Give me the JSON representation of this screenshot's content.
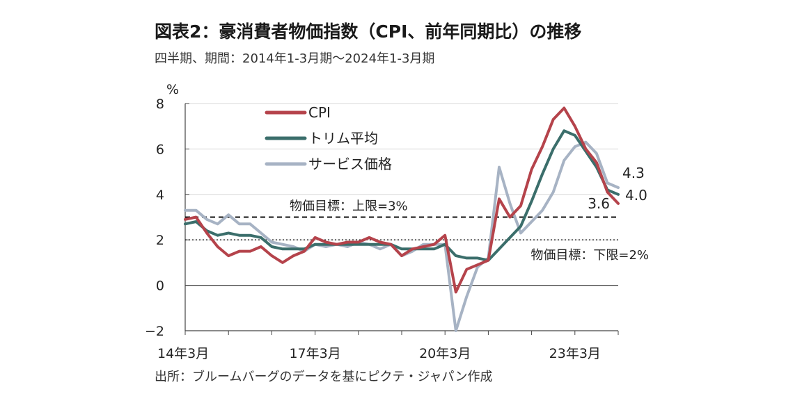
{
  "title": "図表2：豪消費者物価指数（CPI、前年同期比）の推移",
  "subtitle": "四半期、期間：2014年1-3月期～2024年1-3月期",
  "source": "出所：ブルームバーグのデータを基にピクテ・ジャパン作成",
  "chart_data": {
    "type": "line",
    "ylabel": "%",
    "ylim": [
      -2,
      8
    ],
    "yticks": [
      -2,
      0,
      2,
      4,
      6,
      8
    ],
    "x": [
      "14Q1",
      "14Q2",
      "14Q3",
      "14Q4",
      "15Q1",
      "15Q2",
      "15Q3",
      "15Q4",
      "16Q1",
      "16Q2",
      "16Q3",
      "16Q4",
      "17Q1",
      "17Q2",
      "17Q3",
      "17Q4",
      "18Q1",
      "18Q2",
      "18Q3",
      "18Q4",
      "19Q1",
      "19Q2",
      "19Q3",
      "19Q4",
      "20Q1",
      "20Q2",
      "20Q3",
      "20Q4",
      "21Q1",
      "21Q2",
      "21Q3",
      "21Q4",
      "22Q1",
      "22Q2",
      "22Q3",
      "22Q4",
      "23Q1",
      "23Q2",
      "23Q3",
      "23Q4",
      "24Q1"
    ],
    "xtick_labels": [
      {
        "index": 0,
        "label": "14年3月"
      },
      {
        "index": 12,
        "label": "17年3月"
      },
      {
        "index": 24,
        "label": "20年3月"
      },
      {
        "index": 36,
        "label": "23年3月"
      }
    ],
    "series": [
      {
        "name": "CPI",
        "color": "#b5434b",
        "values": [
          2.9,
          3.0,
          2.3,
          1.7,
          1.3,
          1.5,
          1.5,
          1.7,
          1.3,
          1.0,
          1.3,
          1.5,
          2.1,
          1.9,
          1.8,
          1.9,
          1.9,
          2.1,
          1.9,
          1.8,
          1.3,
          1.6,
          1.7,
          1.8,
          2.2,
          -0.3,
          0.7,
          0.9,
          1.1,
          3.8,
          3.0,
          3.5,
          5.1,
          6.1,
          7.3,
          7.8,
          7.0,
          6.0,
          5.4,
          4.1,
          3.6
        ]
      },
      {
        "name": "トリム平均",
        "color": "#3b6e6b",
        "values": [
          2.7,
          2.8,
          2.4,
          2.2,
          2.3,
          2.2,
          2.2,
          2.1,
          1.7,
          1.6,
          1.6,
          1.6,
          1.8,
          1.8,
          1.8,
          1.8,
          1.8,
          1.8,
          1.8,
          1.8,
          1.6,
          1.6,
          1.6,
          1.6,
          1.8,
          1.3,
          1.2,
          1.2,
          1.1,
          1.6,
          2.1,
          2.6,
          3.7,
          4.9,
          6.0,
          6.8,
          6.6,
          5.9,
          5.2,
          4.2,
          4.0
        ]
      },
      {
        "name": "サービス価格",
        "color": "#a7b3c4",
        "values": [
          3.3,
          3.3,
          2.9,
          2.7,
          3.1,
          2.7,
          2.7,
          2.3,
          1.9,
          1.8,
          1.7,
          1.5,
          1.8,
          1.7,
          1.8,
          1.7,
          1.9,
          1.8,
          1.6,
          1.8,
          1.3,
          1.5,
          1.8,
          1.8,
          1.8,
          -2.0,
          -0.5,
          0.8,
          1.2,
          5.2,
          3.6,
          2.3,
          2.8,
          3.3,
          4.1,
          5.5,
          6.1,
          6.3,
          5.8,
          4.5,
          4.3
        ]
      }
    ],
    "reference_lines": [
      {
        "value": 3,
        "style": "dashed",
        "label": "物価目標：上限=3%"
      },
      {
        "value": 2,
        "style": "dotted",
        "label": "物価目標：下限=2%"
      }
    ],
    "end_labels": [
      {
        "series": "サービス価格",
        "text": "4.3"
      },
      {
        "series": "トリム平均",
        "text": "4.0"
      },
      {
        "series": "CPI",
        "text": "3.6"
      }
    ],
    "legend": "top-left",
    "grid": "horizontal"
  }
}
